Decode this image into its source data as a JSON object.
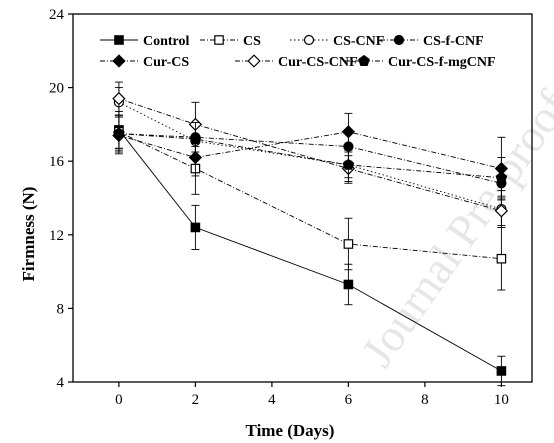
{
  "chart_data": {
    "type": "line",
    "xlabel": "Time (Days)",
    "ylabel": "Firmness (N)",
    "xlim": [
      -1.2,
      10.8
    ],
    "ylim": [
      4,
      24
    ],
    "x_ticks": [
      0,
      2,
      4,
      6,
      8,
      10
    ],
    "y_ticks": [
      4,
      8,
      12,
      16,
      20,
      24
    ],
    "x_tick_labels": [
      "0",
      "2",
      "4",
      "6",
      "8",
      "10"
    ],
    "y_tick_labels": [
      "4",
      "8",
      "12",
      "16",
      "20",
      "24"
    ],
    "x": [
      0,
      2,
      6,
      10
    ],
    "legend_position": "top-inside",
    "series": [
      {
        "name": "Control",
        "marker": "square-filled",
        "dash": "solid",
        "values": [
          17.7,
          12.4,
          9.3,
          4.6
        ],
        "errors": [
          1.0,
          1.2,
          1.1,
          0.8
        ]
      },
      {
        "name": "CS",
        "marker": "square-open",
        "dash": "dashdot",
        "values": [
          17.6,
          15.6,
          11.5,
          10.7
        ],
        "errors": [
          0.9,
          1.4,
          1.4,
          1.7
        ]
      },
      {
        "name": "CS-CNF",
        "marker": "circle-open",
        "dash": "dotted",
        "values": [
          19.2,
          17.1,
          15.8,
          13.4
        ],
        "errors": [
          0.8,
          1.0,
          0.7,
          1.0
        ]
      },
      {
        "name": "CS-f-CNF",
        "marker": "circle-filled",
        "dash": "dashdot",
        "values": [
          17.5,
          17.3,
          16.8,
          14.8
        ],
        "errors": [
          0.9,
          0.8,
          0.8,
          0.9
        ]
      },
      {
        "name": "Cur-CS",
        "marker": "diamond-filled",
        "dash": "dashdot",
        "values": [
          17.4,
          16.2,
          17.6,
          15.6
        ],
        "errors": [
          1.0,
          1.0,
          1.0,
          1.7
        ]
      },
      {
        "name": "Cur-CS-CNF",
        "marker": "diamond-open",
        "dash": "dashdot",
        "values": [
          19.4,
          18.0,
          15.6,
          13.3
        ],
        "errors": [
          0.9,
          1.2,
          0.7,
          0.8
        ]
      },
      {
        "name": "Cur-CS-f-mgCNF",
        "marker": "pentagon-filled",
        "dash": "dashdot",
        "values": [
          17.5,
          17.2,
          15.8,
          15.1
        ],
        "errors": [
          1.0,
          0.9,
          1.0,
          1.1
        ]
      }
    ]
  },
  "watermark": "Journal Pre-proof"
}
